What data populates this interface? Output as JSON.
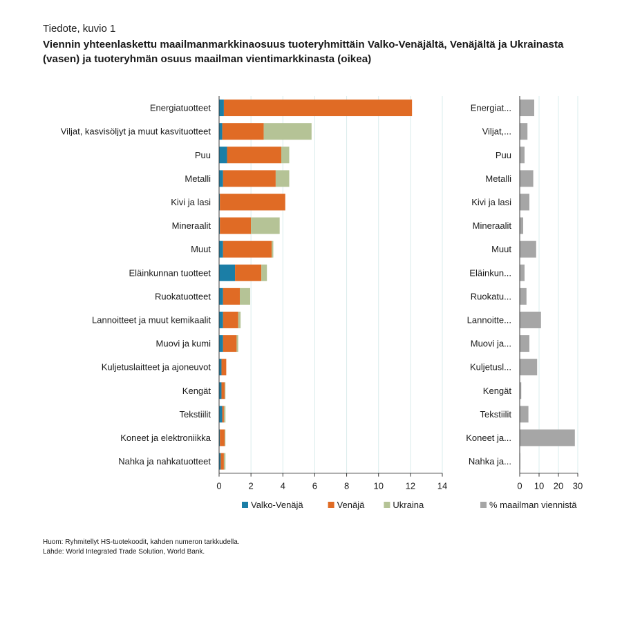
{
  "header": {
    "kicker": "Tiedote, kuvio 1",
    "title": "Viennin yhteenlaskettu maailmanmarkkinaosuus tuoteryhmittäin Valko-Venäjältä, Venäjältä ja Ukrainasta (vasen) ja tuoteryhmän osuus maailman vientimarkkinasta (oikea)"
  },
  "notes": {
    "huom": "Huom: Ryhmitellyt HS-tuotekoodit, kahden numeron tarkkudella.",
    "lahde": "Lähde: World Integrated Trade Solution, World Bank."
  },
  "chart_data": [
    {
      "type": "bar",
      "orientation": "horizontal",
      "stacked": true,
      "categories": [
        "Energiatuotteet",
        "Viljat, kasvisöljyt ja muut kasvituotteet",
        "Puu",
        "Metalli",
        "Kivi ja lasi",
        "Mineraalit",
        "Muut",
        "Eläinkunnan tuotteet",
        "Ruokatuotteet",
        "Lannoitteet ja muut kemikaalit",
        "Muovi ja kumi",
        "Kuljetuslaitteet ja ajoneuvot",
        "Kengät",
        "Tekstiilit",
        "Koneet ja elektroniikka",
        "Nahka ja nahkatuotteet"
      ],
      "series": [
        {
          "name": "Valko-Venäjä",
          "color": "#1b7ea6",
          "values": [
            0.3,
            0.2,
            0.5,
            0.25,
            0.05,
            0.05,
            0.25,
            1.0,
            0.25,
            0.25,
            0.25,
            0.15,
            0.15,
            0.2,
            0.05,
            0.1
          ]
        },
        {
          "name": "Venäjä",
          "color": "#e06b25",
          "values": [
            11.8,
            2.6,
            3.4,
            3.3,
            4.1,
            1.95,
            3.05,
            1.65,
            1.05,
            0.95,
            0.85,
            0.3,
            0.2,
            0.1,
            0.3,
            0.2
          ]
        },
        {
          "name": "Ukraina",
          "color": "#b5c396",
          "values": [
            0.0,
            3.0,
            0.5,
            0.85,
            0.0,
            1.8,
            0.1,
            0.35,
            0.65,
            0.15,
            0.1,
            0.0,
            0.05,
            0.1,
            0.05,
            0.1
          ]
        }
      ],
      "xlim": [
        0,
        14
      ],
      "xticks": [
        "0",
        "2",
        "4",
        "6",
        "8",
        "10",
        "12",
        "14"
      ],
      "grid": true,
      "legend": "bottom"
    },
    {
      "type": "bar",
      "orientation": "horizontal",
      "categories": [
        "Energiat...",
        "Viljat,...",
        "Puu",
        "Metalli",
        "Kivi ja lasi",
        "Mineraalit",
        "Muut",
        "Eläinkun...",
        "Ruokatu...",
        "Lannoitte...",
        "Muovi ja...",
        "Kuljetusl...",
        "Kengät",
        "Tekstiilit",
        "Koneet ja...",
        "Nahka ja..."
      ],
      "series": [
        {
          "name": "% maailman viennistä",
          "color": "#a6a6a6",
          "values": [
            7.5,
            4.0,
            2.5,
            7.0,
            5.0,
            1.8,
            8.5,
            2.5,
            3.5,
            11.0,
            5.0,
            9.0,
            0.8,
            4.5,
            28.5,
            0.3
          ]
        }
      ],
      "xlim": [
        0,
        30
      ],
      "xticks": [
        "0",
        "10",
        "20",
        "30"
      ],
      "grid": true,
      "legend": "bottom"
    }
  ]
}
